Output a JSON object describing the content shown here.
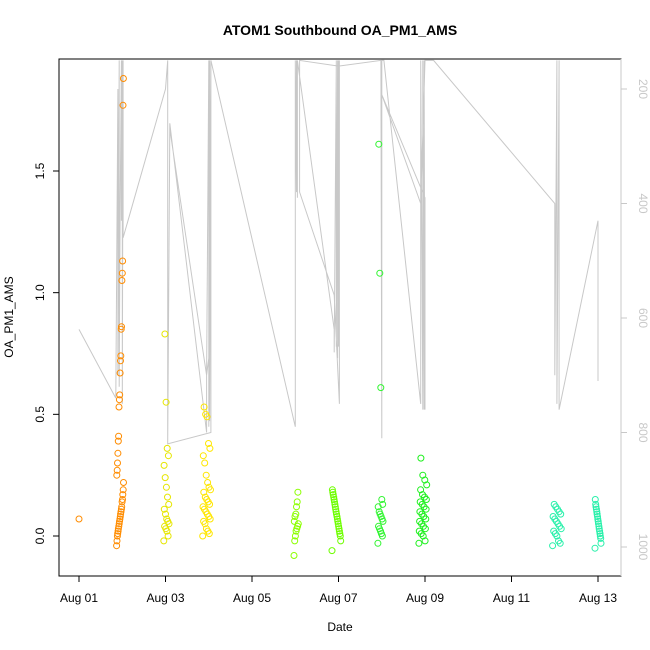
{
  "chart_data": {
    "type": "scatter",
    "title": "ATOM1 Southbound OA_PM1_AMS",
    "xlabel": "Date",
    "ylabel": "OA_PM1_AMS",
    "xlim": [
      0,
      13
    ],
    "ylim": [
      -0.16,
      1.96
    ],
    "x_ticks": [
      0,
      2,
      4,
      6,
      8,
      10,
      12
    ],
    "x_tick_labels": [
      "Aug 01",
      "Aug 03",
      "Aug 05",
      "Aug 07",
      "Aug 09",
      "Aug 11",
      "Aug 13"
    ],
    "y_ticks": [
      0.0,
      0.5,
      1.0,
      1.5
    ],
    "y_tick_labels": [
      "0.0",
      "0.5",
      "1.0",
      "1.5"
    ],
    "y2_ticks": [
      200,
      400,
      600,
      800,
      1000
    ],
    "y2_tick_labels": [
      "200",
      "400",
      "600",
      "800",
      "1000"
    ],
    "y2_reversed": true,
    "y2_range_at_bottom": 1060,
    "y2_range_at_top": 165,
    "y2_color": "#c8c8c8",
    "point_colors_by_day": {
      "Aug 01": "#ff8c00",
      "Aug 02": "#ff8c00",
      "Aug 03": "#e6e600",
      "Aug 04": "#ffe600",
      "Aug 06": "#8cff00",
      "Aug 07": "#6efe00",
      "Aug 08": "#32f532",
      "Aug 09": "#1ef01e",
      "Aug 12": "#28f0aa",
      "Aug 13": "#28f0aa"
    },
    "groups": [
      {
        "day": "Aug 01",
        "color": "#ff8c00",
        "x": [
          0.0
        ],
        "y": [
          0.07
        ]
      },
      {
        "day": "Aug 02",
        "color": "#ff8c00",
        "x_center": 0.95,
        "x_spread": 0.08,
        "y": [
          -0.04,
          -0.02,
          0.0,
          0.01,
          0.02,
          0.03,
          0.04,
          0.05,
          0.06,
          0.07,
          0.08,
          0.09,
          0.1,
          0.11,
          0.12,
          0.14,
          0.15,
          0.17,
          0.19,
          0.22,
          0.25,
          0.27,
          0.3,
          0.34,
          0.39,
          0.41,
          0.53,
          0.56,
          0.58,
          0.67,
          0.72,
          0.74,
          0.85,
          0.86,
          1.05,
          1.08,
          1.13,
          1.77,
          1.88
        ]
      },
      {
        "day": "Aug 03",
        "color": "#e6e600",
        "x_center": 2.02,
        "x_spread": 0.06,
        "y": [
          -0.02,
          0.0,
          0.02,
          0.03,
          0.04,
          0.05,
          0.06,
          0.07,
          0.09,
          0.11,
          0.13,
          0.16,
          0.2,
          0.24,
          0.29,
          0.33,
          0.36,
          0.55,
          0.83
        ]
      },
      {
        "day": "Aug 04",
        "color": "#ffe600",
        "x_center": 2.95,
        "x_spread": 0.09,
        "y": [
          0.0,
          0.01,
          0.02,
          0.03,
          0.05,
          0.06,
          0.07,
          0.08,
          0.09,
          0.1,
          0.11,
          0.12,
          0.13,
          0.14,
          0.15,
          0.16,
          0.18,
          0.19,
          0.2,
          0.22,
          0.25,
          0.3,
          0.33,
          0.36,
          0.38,
          0.49,
          0.5,
          0.53
        ]
      },
      {
        "day": "Aug 06",
        "color": "#8cff00",
        "x_center": 5.02,
        "x_spread": 0.05,
        "y": [
          -0.08,
          -0.02,
          0.0,
          0.02,
          0.03,
          0.04,
          0.05,
          0.06,
          0.08,
          0.09,
          0.12,
          0.14,
          0.18
        ]
      },
      {
        "day": "Aug 07",
        "color": "#6efe00",
        "x_center": 5.95,
        "x_spread": 0.1,
        "y": [
          -0.06,
          -0.02,
          0.0,
          0.01,
          0.02,
          0.03,
          0.04,
          0.05,
          0.06,
          0.07,
          0.08,
          0.09,
          0.1,
          0.11,
          0.12,
          0.13,
          0.14,
          0.15,
          0.16,
          0.17,
          0.18,
          0.19
        ]
      },
      {
        "day": "Aug 08",
        "color": "#32f532",
        "x_center": 6.97,
        "x_spread": 0.06,
        "y": [
          -0.03,
          0.0,
          0.01,
          0.02,
          0.03,
          0.04,
          0.06,
          0.07,
          0.08,
          0.09,
          0.1,
          0.12,
          0.13,
          0.15,
          0.61,
          1.08,
          1.61
        ]
      },
      {
        "day": "Aug 09",
        "color": "#1ef01e",
        "x_center": 7.95,
        "x_spread": 0.09,
        "y": [
          -0.03,
          -0.02,
          0.0,
          0.01,
          0.02,
          0.03,
          0.04,
          0.05,
          0.06,
          0.07,
          0.08,
          0.09,
          0.1,
          0.11,
          0.12,
          0.13,
          0.14,
          0.15,
          0.16,
          0.17,
          0.19,
          0.21,
          0.23,
          0.25,
          0.32
        ]
      },
      {
        "day": "Aug 12",
        "color": "#28f0aa",
        "x_center": 11.05,
        "x_spread": 0.1,
        "y": [
          -0.04,
          -0.03,
          -0.02,
          0.0,
          0.01,
          0.02,
          0.03,
          0.04,
          0.05,
          0.06,
          0.07,
          0.08,
          0.09,
          0.1,
          0.11,
          0.12,
          0.13
        ]
      },
      {
        "day": "Aug 13",
        "color": "#28f0aa",
        "x_center": 12.0,
        "x_spread": 0.07,
        "y": [
          -0.05,
          -0.03,
          -0.01,
          0.0,
          0.01,
          0.02,
          0.03,
          0.04,
          0.05,
          0.06,
          0.07,
          0.08,
          0.09,
          0.1,
          0.11,
          0.12,
          0.13,
          0.15
        ]
      }
    ],
    "altitude_series": {
      "color": "#c8c8c8",
      "x": [
        0.0,
        0.85,
        0.9,
        0.9,
        0.93,
        0.93,
        0.95,
        0.98,
        0.98,
        1.0,
        1.0,
        1.02,
        1.02,
        2.0,
        2.05,
        2.05,
        2.1,
        2.95,
        2.95,
        3.0,
        3.0,
        3.02,
        3.02,
        3.05,
        3.05,
        2.05,
        2.1,
        2.95,
        3.0,
        3.05,
        5.0,
        5.0,
        5.03,
        5.03,
        5.05,
        5.05,
        5.9,
        5.9,
        5.95,
        5.95,
        5.98,
        5.98,
        6.0,
        6.0,
        6.02,
        6.02,
        5.9,
        5.1,
        5.1,
        6.0,
        6.98,
        7.0,
        7.0,
        7.02,
        7.02,
        7.05,
        7.05,
        7.9,
        7.9,
        7.95,
        7.95,
        7.98,
        7.98,
        8.0,
        8.0,
        7.0,
        7.9,
        8.0,
        8.2,
        11.0,
        11.0,
        11.05,
        11.05,
        11.1,
        11.1,
        12.0,
        12.0
      ],
      "y": [
        620,
        740,
        200,
        700,
        150,
        720,
        420,
        150,
        430,
        150,
        750,
        150,
        460,
        200,
        150,
        820,
        260,
        800,
        700,
        150,
        790,
        150,
        780,
        150,
        800,
        820,
        270,
        700,
        670,
        150,
        790,
        150,
        380,
        150,
        390,
        150,
        620,
        660,
        150,
        650,
        150,
        670,
        150,
        650,
        150,
        750,
        560,
        380,
        150,
        160,
        150,
        810,
        150,
        150,
        150,
        150,
        150,
        750,
        150,
        760,
        150,
        760,
        150,
        760,
        390,
        210,
        400,
        150,
        150,
        400,
        700,
        150,
        750,
        150,
        760,
        430,
        710
      ]
    }
  }
}
